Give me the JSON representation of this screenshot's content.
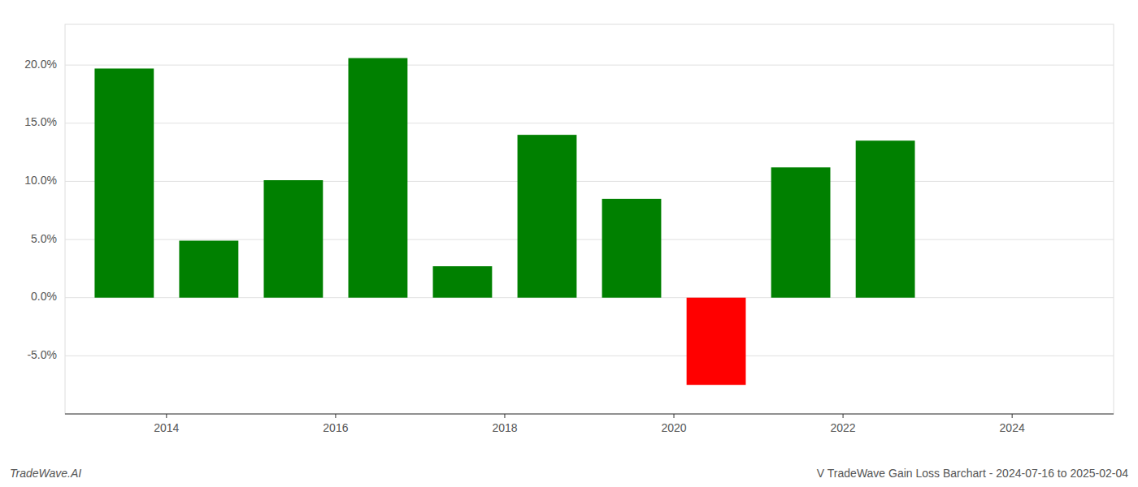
{
  "chart_data": {
    "type": "bar",
    "title": "V TradeWave Gain Loss Barchart - 2024-07-16 to 2025-02-04",
    "annotations": [
      "TradeWave.AI"
    ],
    "x": [
      2013.5,
      2014.5,
      2015.5,
      2016.5,
      2017.5,
      2018.5,
      2019.5,
      2020.5,
      2021.5,
      2022.5,
      2023.5
    ],
    "values": [
      0.197,
      0.049,
      0.101,
      0.206,
      0.027,
      0.14,
      0.085,
      -0.075,
      0.112,
      0.135,
      0.0
    ],
    "colors": [
      "#008000",
      "#008000",
      "#008000",
      "#008000",
      "#008000",
      "#008000",
      "#008000",
      "#ff0000",
      "#008000",
      "#008000",
      "#008000"
    ],
    "xlim": [
      2012.8,
      2025.2
    ],
    "ylim": [
      -0.1,
      0.235
    ],
    "xticks": [
      2014,
      2016,
      2018,
      2020,
      2022,
      2024
    ],
    "yticks": [
      {
        "value": -0.05,
        "label": "-5.0%"
      },
      {
        "value": 0.0,
        "label": "0.0%"
      },
      {
        "value": 0.05,
        "label": "5.0%"
      },
      {
        "value": 0.1,
        "label": "10.0%"
      },
      {
        "value": 0.15,
        "label": "15.0%"
      },
      {
        "value": 0.2,
        "label": "20.0%"
      }
    ],
    "grid": true
  }
}
